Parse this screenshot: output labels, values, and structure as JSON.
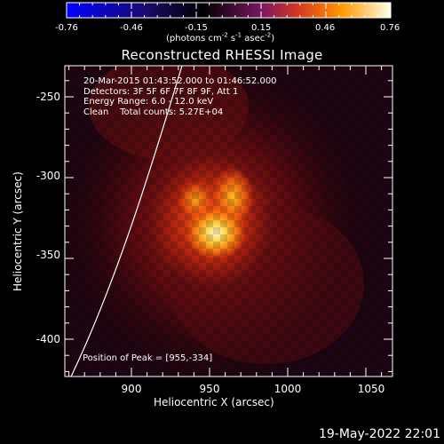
{
  "plot": {
    "title": "Reconstructed RHESSI Image",
    "info_lines": [
      "20-Mar-2015 01:43:52.000 to 01:46:52.000",
      "Detectors: 3F 5F 6F 7F 8F 9F, Att 1",
      "Energy Range: 6.0 - 12.0 keV",
      "Clean    Total counts: 5.27E+04"
    ],
    "peak_label": "Position of Peak = [955,-334]",
    "x_axis": {
      "label": "Heliocentric X (arcsec)",
      "ticks": [
        "900",
        "950",
        "1000",
        "1050"
      ]
    },
    "y_axis": {
      "label": "Heliocentric Y (arcsec)",
      "ticks": [
        "-250",
        "-300",
        "-350",
        "-400"
      ]
    }
  },
  "colorbar": {
    "units_main": "(photons cm",
    "units_exp1": "-2",
    "units_mid1": " s",
    "units_exp2": "-1",
    "units_mid2": " asec",
    "units_exp3": "-2",
    "units_end": ")",
    "ticks": [
      "-0.76",
      "-0.46",
      "-0.15",
      "0.15",
      "0.46",
      "0.76"
    ]
  },
  "footer": {
    "date": "19-May-2022 22:01"
  }
}
